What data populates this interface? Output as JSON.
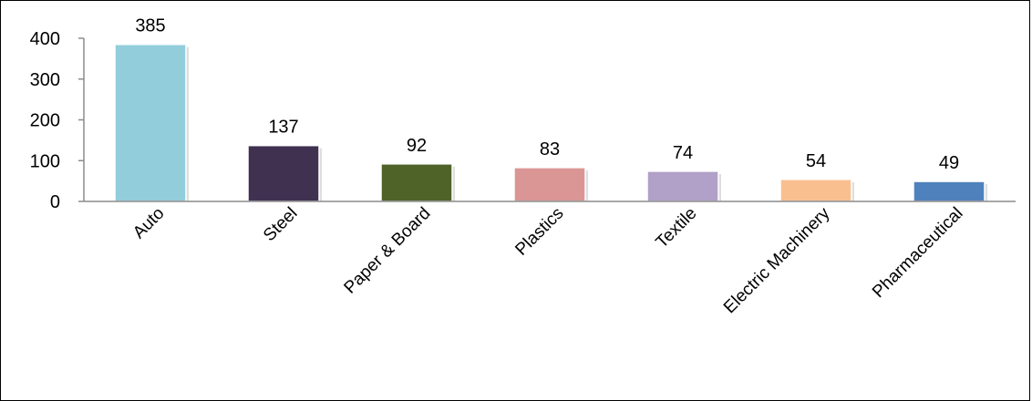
{
  "chart_data": {
    "type": "bar",
    "title": "",
    "categories": [
      "Auto",
      "Steel",
      "Paper & Board",
      "Plastics",
      "Textile",
      "Electric Machinery",
      "Pharmaceutical"
    ],
    "values": [
      385,
      137,
      92,
      83,
      74,
      54,
      49
    ],
    "colors": [
      "#92CDDC",
      "#403151",
      "#4F6228",
      "#DA9694",
      "#B1A0C7",
      "#FABF8F",
      "#4F81BD"
    ],
    "ylim": [
      0,
      400
    ],
    "yticks": [
      0,
      100,
      200,
      300,
      400
    ],
    "grid": false,
    "legend": "none",
    "data_labels": true
  }
}
